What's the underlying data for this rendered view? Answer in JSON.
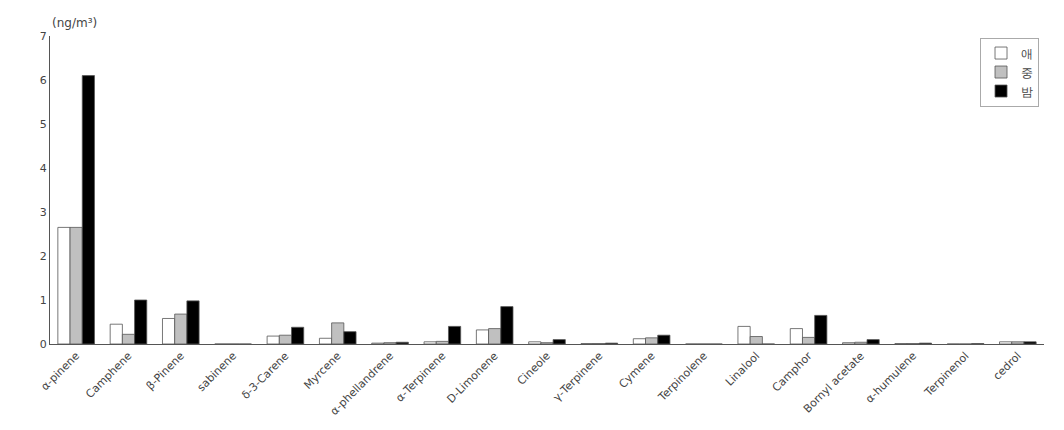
{
  "chart_data": {
    "type": "bar",
    "ylabel": "(ng/m³)",
    "categories": [
      "α-pinene",
      "Camphene",
      "β-Pinene",
      "sabinene",
      "δ-3-Carene",
      "Myrcene",
      "α-phellandrene",
      "α-Terpinene",
      "D-Limonene",
      "Cineole",
      "γ-Terpinene",
      "Cymene",
      "Terpinolene",
      "Linalool",
      "Camphor",
      "Bornyl acetate",
      "α-humulene",
      "Terpinenol",
      "cedrol"
    ],
    "series": [
      {
        "name": "애",
        "color": "white",
        "values": [
          2.65,
          0.45,
          0.58,
          0.0,
          0.18,
          0.13,
          0.02,
          0.05,
          0.32,
          0.05,
          0.01,
          0.12,
          0.0,
          0.4,
          0.35,
          0.03,
          0.01,
          0.0,
          0.05
        ]
      },
      {
        "name": "중",
        "color": "#c0c0c0",
        "values": [
          2.65,
          0.22,
          0.68,
          0.0,
          0.2,
          0.48,
          0.03,
          0.06,
          0.35,
          0.03,
          0.01,
          0.14,
          0.0,
          0.17,
          0.15,
          0.04,
          0.01,
          0.0,
          0.05
        ]
      },
      {
        "name": "밤",
        "color": "black",
        "values": [
          6.1,
          1.0,
          0.98,
          0.0,
          0.38,
          0.28,
          0.04,
          0.4,
          0.85,
          0.1,
          0.02,
          0.2,
          0.0,
          0.0,
          0.65,
          0.1,
          0.02,
          0.01,
          0.05
        ]
      }
    ],
    "ylim": [
      0,
      7
    ],
    "yticks": [
      0,
      1,
      2,
      3,
      4,
      5,
      6,
      7
    ],
    "grid": false,
    "legend": "upper right"
  }
}
